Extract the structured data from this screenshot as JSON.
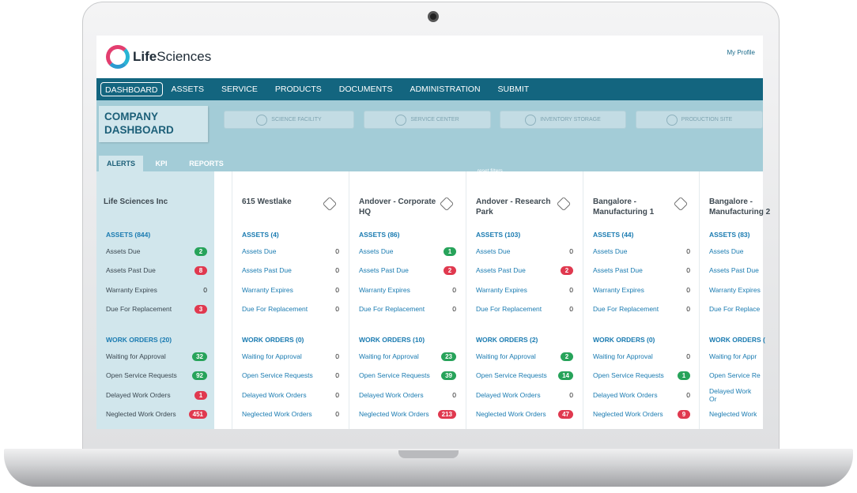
{
  "app": {
    "logo_bold": "Life",
    "logo_rest": "Sciences",
    "profile": "My Profile"
  },
  "nav": [
    "DASHBOARD",
    "ASSETS",
    "SERVICE",
    "PRODUCTS",
    "DOCUMENTS",
    "ADMINISTRATION",
    "SUBMIT"
  ],
  "dashboard_title": "COMPANY DASHBOARD",
  "site_filters": [
    "SCIENCE FACILITY",
    "SERVICE CENTER",
    "INVENTORY STORAGE",
    "PRODUCTION SITE"
  ],
  "tabs": [
    "ALERTS",
    "KPI",
    "REPORTS"
  ],
  "reset": "reset filters",
  "company": {
    "name": "Life Sciences Inc",
    "assets_header": "ASSETS (844)",
    "assets": [
      {
        "label": "Assets Due",
        "value": "2",
        "color": "green"
      },
      {
        "label": "Assets Past Due",
        "value": "8",
        "color": "red"
      },
      {
        "label": "Warranty Expires",
        "value": "0",
        "color": ""
      },
      {
        "label": "Due For Replacement",
        "value": "3",
        "color": "red"
      }
    ],
    "wo_header": "WORK ORDERS (20)",
    "work_orders": [
      {
        "label": "Waiting for Approval",
        "value": "32",
        "color": "green"
      },
      {
        "label": "Open Service Requests",
        "value": "92",
        "color": "green"
      },
      {
        "label": "Delayed Work Orders",
        "value": "1",
        "color": "red"
      },
      {
        "label": "Neglected Work Orders",
        "value": "451",
        "color": "red"
      }
    ]
  },
  "sites": [
    {
      "name": "615 Westlake",
      "assets_header": "ASSETS (4)",
      "assets": [
        [
          "Assets Due",
          "0",
          ""
        ],
        [
          "Assets Past Due",
          "0",
          ""
        ],
        [
          "Warranty Expires",
          "0",
          ""
        ],
        [
          "Due For Replacement",
          "0",
          ""
        ]
      ],
      "wo_header": "WORK ORDERS (0)",
      "work_orders": [
        [
          "Waiting for Approval",
          "0",
          ""
        ],
        [
          "Open Service Requests",
          "0",
          ""
        ],
        [
          "Delayed Work Orders",
          "0",
          ""
        ],
        [
          "Neglected Work Orders",
          "0",
          ""
        ]
      ]
    },
    {
      "name": "Andover - Corporate HQ",
      "assets_header": "ASSETS (86)",
      "assets": [
        [
          "Assets Due",
          "1",
          "green"
        ],
        [
          "Assets Past Due",
          "2",
          "red"
        ],
        [
          "Warranty Expires",
          "0",
          ""
        ],
        [
          "Due For Replacement",
          "0",
          ""
        ]
      ],
      "wo_header": "WORK ORDERS (10)",
      "work_orders": [
        [
          "Waiting for Approval",
          "23",
          "green"
        ],
        [
          "Open Service Requests",
          "39",
          "green"
        ],
        [
          "Delayed Work Orders",
          "0",
          ""
        ],
        [
          "Neglected Work Orders",
          "213",
          "red"
        ]
      ]
    },
    {
      "name": "Andover - Research Park",
      "assets_header": "ASSETS (103)",
      "assets": [
        [
          "Assets Due",
          "0",
          ""
        ],
        [
          "Assets Past Due",
          "2",
          "red"
        ],
        [
          "Warranty Expires",
          "0",
          ""
        ],
        [
          "Due For Replacement",
          "0",
          ""
        ]
      ],
      "wo_header": "WORK ORDERS (2)",
      "work_orders": [
        [
          "Waiting for Approval",
          "2",
          "green"
        ],
        [
          "Open Service Requests",
          "14",
          "green"
        ],
        [
          "Delayed Work Orders",
          "0",
          ""
        ],
        [
          "Neglected Work Orders",
          "47",
          "red"
        ]
      ]
    },
    {
      "name": "Bangalore - Manufacturing 1",
      "assets_header": "ASSETS (44)",
      "assets": [
        [
          "Assets Due",
          "0",
          ""
        ],
        [
          "Assets Past Due",
          "0",
          ""
        ],
        [
          "Warranty Expires",
          "0",
          ""
        ],
        [
          "Due For Replacement",
          "0",
          ""
        ]
      ],
      "wo_header": "WORK ORDERS (0)",
      "work_orders": [
        [
          "Waiting for Approval",
          "0",
          ""
        ],
        [
          "Open Service Requests",
          "1",
          "green"
        ],
        [
          "Delayed Work Orders",
          "0",
          ""
        ],
        [
          "Neglected Work Orders",
          "9",
          "red"
        ]
      ]
    },
    {
      "name": "Bangalore - Manufacturing 2",
      "assets_header": "ASSETS (83)",
      "assets": [
        [
          "Assets Due",
          "",
          ""
        ],
        [
          "Assets Past Due",
          "",
          ""
        ],
        [
          "Warranty Expires",
          "",
          ""
        ],
        [
          "Due For Replace",
          "",
          ""
        ]
      ],
      "wo_header": "WORK ORDERS (",
      "work_orders": [
        [
          "Waiting for Appr",
          "",
          ""
        ],
        [
          "Open Service Re",
          "",
          ""
        ],
        [
          "Delayed Work Or",
          "",
          ""
        ],
        [
          "Neglected Work",
          "",
          ""
        ]
      ]
    }
  ]
}
